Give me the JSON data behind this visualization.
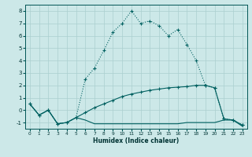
{
  "xlabel": "Humidex (Indice chaleur)",
  "background_color": "#cce8e8",
  "grid_color": "#aacfcf",
  "line_color": "#006060",
  "xlim": [
    -0.5,
    23.5
  ],
  "ylim": [
    -1.5,
    8.5
  ],
  "xticks": [
    0,
    1,
    2,
    3,
    4,
    5,
    6,
    7,
    8,
    9,
    10,
    11,
    12,
    13,
    14,
    15,
    16,
    17,
    18,
    19,
    20,
    21,
    22,
    23
  ],
  "yticks": [
    -1,
    0,
    1,
    2,
    3,
    4,
    5,
    6,
    7,
    8
  ],
  "curve1_x": [
    0,
    1,
    2,
    3,
    4,
    5,
    6,
    7,
    8,
    9,
    10,
    11,
    12,
    13,
    14,
    15,
    16,
    17,
    18,
    19,
    20,
    21,
    22,
    23
  ],
  "curve1_y": [
    0.5,
    -0.4,
    0.0,
    -1.1,
    -1.0,
    -0.6,
    2.5,
    3.4,
    4.8,
    6.3,
    7.0,
    8.0,
    7.0,
    7.2,
    6.8,
    6.0,
    6.5,
    5.3,
    4.0,
    2.0,
    1.8,
    -0.7,
    -0.8,
    -1.2
  ],
  "curve2_x": [
    0,
    1,
    2,
    3,
    4,
    5,
    6,
    7,
    8,
    9,
    10,
    11,
    12,
    13,
    14,
    15,
    16,
    17,
    18,
    19,
    20,
    21,
    22,
    23
  ],
  "curve2_y": [
    0.5,
    -0.4,
    0.0,
    -1.1,
    -1.0,
    -0.6,
    -0.2,
    0.2,
    0.5,
    0.8,
    1.1,
    1.3,
    1.45,
    1.6,
    1.7,
    1.8,
    1.85,
    1.9,
    2.0,
    2.0,
    1.8,
    -0.7,
    -0.8,
    -1.2
  ],
  "curve3_x": [
    0,
    1,
    2,
    3,
    4,
    5,
    6,
    7,
    8,
    9,
    10,
    11,
    12,
    13,
    14,
    15,
    16,
    17,
    18,
    19,
    20,
    21,
    22,
    23
  ],
  "curve3_y": [
    0.5,
    -0.4,
    0.0,
    -1.1,
    -1.0,
    -0.6,
    -0.8,
    -1.1,
    -1.1,
    -1.1,
    -1.1,
    -1.1,
    -1.1,
    -1.1,
    -1.1,
    -1.1,
    -1.1,
    -1.0,
    -1.0,
    -1.0,
    -1.0,
    -0.8,
    -0.8,
    -1.3
  ]
}
